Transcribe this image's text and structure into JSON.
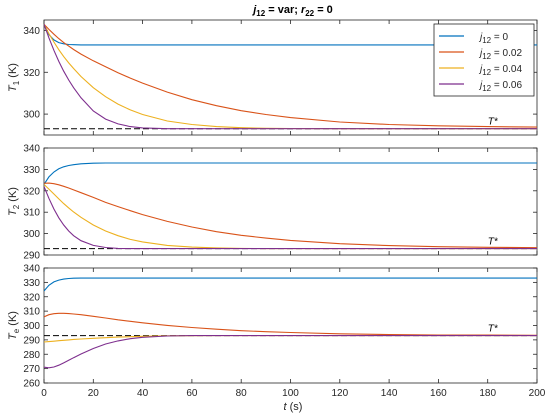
{
  "chart_data": {
    "title": {
      "main_italic": "j",
      "main_sub": "12",
      "main_rest": " = var; ",
      "r_italic": "r",
      "r_sub": "22",
      "r_rest": " = 0"
    },
    "x": [
      0,
      2,
      4,
      6,
      8,
      10,
      12,
      15,
      20,
      25,
      30,
      35,
      40,
      50,
      60,
      70,
      80,
      90,
      100,
      120,
      140,
      160,
      180,
      200
    ],
    "xticks": [
      0,
      20,
      40,
      60,
      80,
      100,
      120,
      140,
      160,
      180,
      200
    ],
    "xlim": [
      0,
      200
    ],
    "xlabel": {
      "italic": "t",
      "rest": " (s)"
    },
    "legend": {
      "placement": "top-right",
      "entries": [
        {
          "prefix": "j",
          "sub": "12",
          "text": " = 0",
          "color": "#0072BD"
        },
        {
          "prefix": "j",
          "sub": "12",
          "text": " = 0.02",
          "color": "#D95319"
        },
        {
          "prefix": "j",
          "sub": "12",
          "text": " = 0.04",
          "color": "#EDB120"
        },
        {
          "prefix": "j",
          "sub": "12",
          "text": " = 0.06",
          "color": "#7E2F8E"
        }
      ]
    },
    "panels": [
      {
        "type": "line",
        "ylabel": {
          "main": "T",
          "sub": "1",
          "rest": " (K)"
        },
        "ylim": [
          290,
          345
        ],
        "yticks": [
          300,
          320,
          340
        ],
        "reference": {
          "value": 293,
          "label": "T*",
          "label_x": 180
        },
        "series": [
          {
            "color": "#0072BD",
            "values": [
              343,
              338,
              335.5,
              334.2,
              333.6,
              333.3,
              333.2,
              333.1,
              333.1,
              333.1,
              333.1,
              333.1,
              333.1,
              333.1,
              333.1,
              333.1,
              333.1,
              333.1,
              333.1,
              333.1,
              333.1,
              333.1,
              333.1,
              333.1
            ]
          },
          {
            "color": "#D95319",
            "values": [
              343,
              340.5,
              338.2,
              336.1,
              334.2,
              332.5,
              330.9,
              328.7,
              325.5,
              322.6,
              319.8,
              317.2,
              314.8,
              310.5,
              306.9,
              304,
              301.6,
              299.8,
              298.3,
              296.2,
              295,
              294.4,
              294,
              293.8
            ]
          },
          {
            "color": "#EDB120",
            "values": [
              343,
              338.5,
              334.5,
              330.8,
              327.5,
              324.5,
              321.8,
              318,
              312.6,
              308.3,
              304.8,
              302,
              299.8,
              296.7,
              295,
              294,
              293.5,
              293.2,
              293.1,
              293,
              293,
              293,
              293,
              293
            ]
          },
          {
            "color": "#7E2F8E",
            "values": [
              343,
              336.5,
              330.5,
              325.2,
              320.5,
              316.3,
              312.6,
              307.8,
              301.5,
              297.6,
              295.3,
              294,
              293.4,
              293,
              293,
              293,
              293,
              293,
              293,
              293,
              293,
              293,
              293,
              293
            ]
          }
        ]
      },
      {
        "type": "line",
        "ylabel": {
          "main": "T",
          "sub": "2",
          "rest": " (K)"
        },
        "ylim": [
          290,
          340
        ],
        "yticks": [
          290,
          300,
          310,
          320,
          330,
          340
        ],
        "reference": {
          "value": 293,
          "label": "T*",
          "label_x": 180
        },
        "series": [
          {
            "color": "#0072BD",
            "values": [
              323,
              326.5,
              328.8,
              330.3,
              331.2,
              331.8,
              332.2,
              332.6,
              332.9,
              333,
              333,
              333,
              333,
              333,
              333,
              333,
              333,
              333,
              333,
              333,
              333,
              333,
              333,
              333
            ]
          },
          {
            "color": "#D95319",
            "values": [
              323.5,
              323.6,
              323.3,
              322.8,
              322.1,
              321.3,
              320.4,
              319.1,
              316.9,
              314.6,
              312.6,
              310.7,
              308.9,
              305.7,
              303.1,
              300.9,
              299.2,
              297.9,
              296.8,
              295.3,
              294.4,
              293.9,
              293.6,
              293.4
            ]
          },
          {
            "color": "#EDB120",
            "values": [
              323,
              320.8,
              318.5,
              316.2,
              314,
              312,
              310.1,
              307.6,
              304,
              301.2,
              299,
              297.3,
              296.1,
              294.5,
              293.7,
              293.3,
              293.1,
              293,
              293,
              293,
              293,
              293,
              293,
              293
            ]
          },
          {
            "color": "#7E2F8E",
            "values": [
              322,
              316.5,
              311.5,
              307.4,
              304,
              301.2,
              299,
              296.7,
              294.5,
              293.5,
              293.1,
              293,
              293,
              293,
              293,
              293,
              293,
              293,
              293,
              293,
              293,
              293,
              293,
              293
            ]
          }
        ]
      },
      {
        "type": "line",
        "ylabel": {
          "main": "T",
          "sub": "e",
          "rest": " (K)"
        },
        "ylim": [
          260,
          340
        ],
        "yticks": [
          260,
          270,
          280,
          290,
          300,
          310,
          320,
          330,
          340
        ],
        "reference": {
          "value": 293,
          "label": "T*",
          "label_x": 180
        },
        "series": [
          {
            "color": "#0072BD",
            "values": [
              324,
              328,
              330.3,
              331.6,
              332.3,
              332.7,
              332.9,
              333,
              333,
              333,
              333,
              333,
              333,
              333,
              333,
              333,
              333,
              333,
              333,
              333,
              333,
              333,
              333,
              333
            ]
          },
          {
            "color": "#D95319",
            "values": [
              306,
              307.5,
              308.2,
              308.5,
              308.5,
              308.3,
              308,
              307.5,
              306.4,
              305.2,
              304,
              302.9,
              301.9,
              300.1,
              298.6,
              297.4,
              296.4,
              295.7,
              295.1,
              294.2,
              293.7,
              293.4,
              293.3,
              293.2
            ]
          },
          {
            "color": "#EDB120",
            "values": [
              288.5,
              288.8,
              289.1,
              289.4,
              289.7,
              290,
              290.3,
              290.6,
              291.1,
              291.5,
              291.9,
              292.2,
              292.5,
              292.8,
              292.9,
              293,
              293,
              293,
              293,
              293,
              293,
              293,
              293,
              293
            ]
          },
          {
            "color": "#7E2F8E",
            "values": [
              271,
              270.6,
              271.1,
              272.4,
              274,
              275.8,
              277.6,
              280.2,
              284,
              287.1,
              289.3,
              290.8,
              291.8,
              292.7,
              293,
              293,
              293,
              293,
              293,
              293,
              293,
              293,
              293,
              293
            ]
          }
        ]
      }
    ]
  }
}
